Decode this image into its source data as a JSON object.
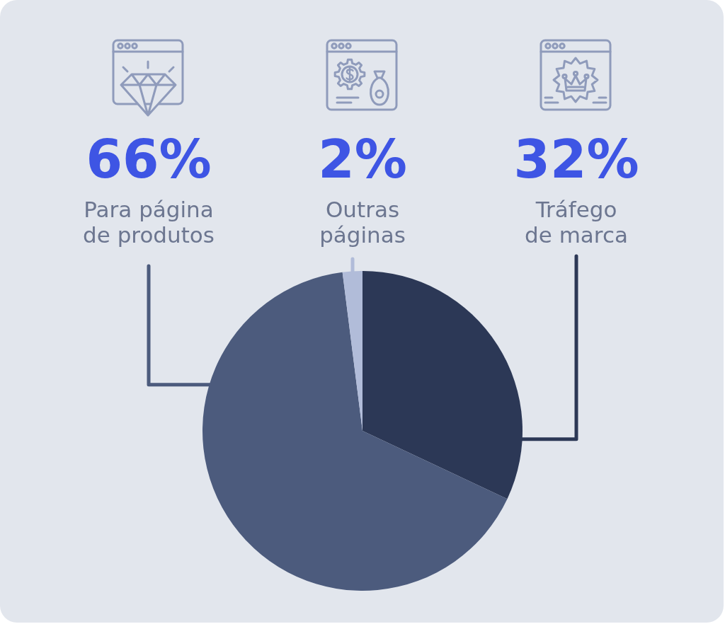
{
  "chart_data": {
    "type": "pie",
    "categories": [
      "Tráfego de marca",
      "Para página de produtos",
      "Outras páginas"
    ],
    "values": [
      32,
      66,
      2
    ],
    "value_labels": [
      "32%",
      "66%",
      "2%"
    ],
    "colors": [
      "#2c3856",
      "#4c5b7d",
      "#b1bcd9"
    ]
  }
}
